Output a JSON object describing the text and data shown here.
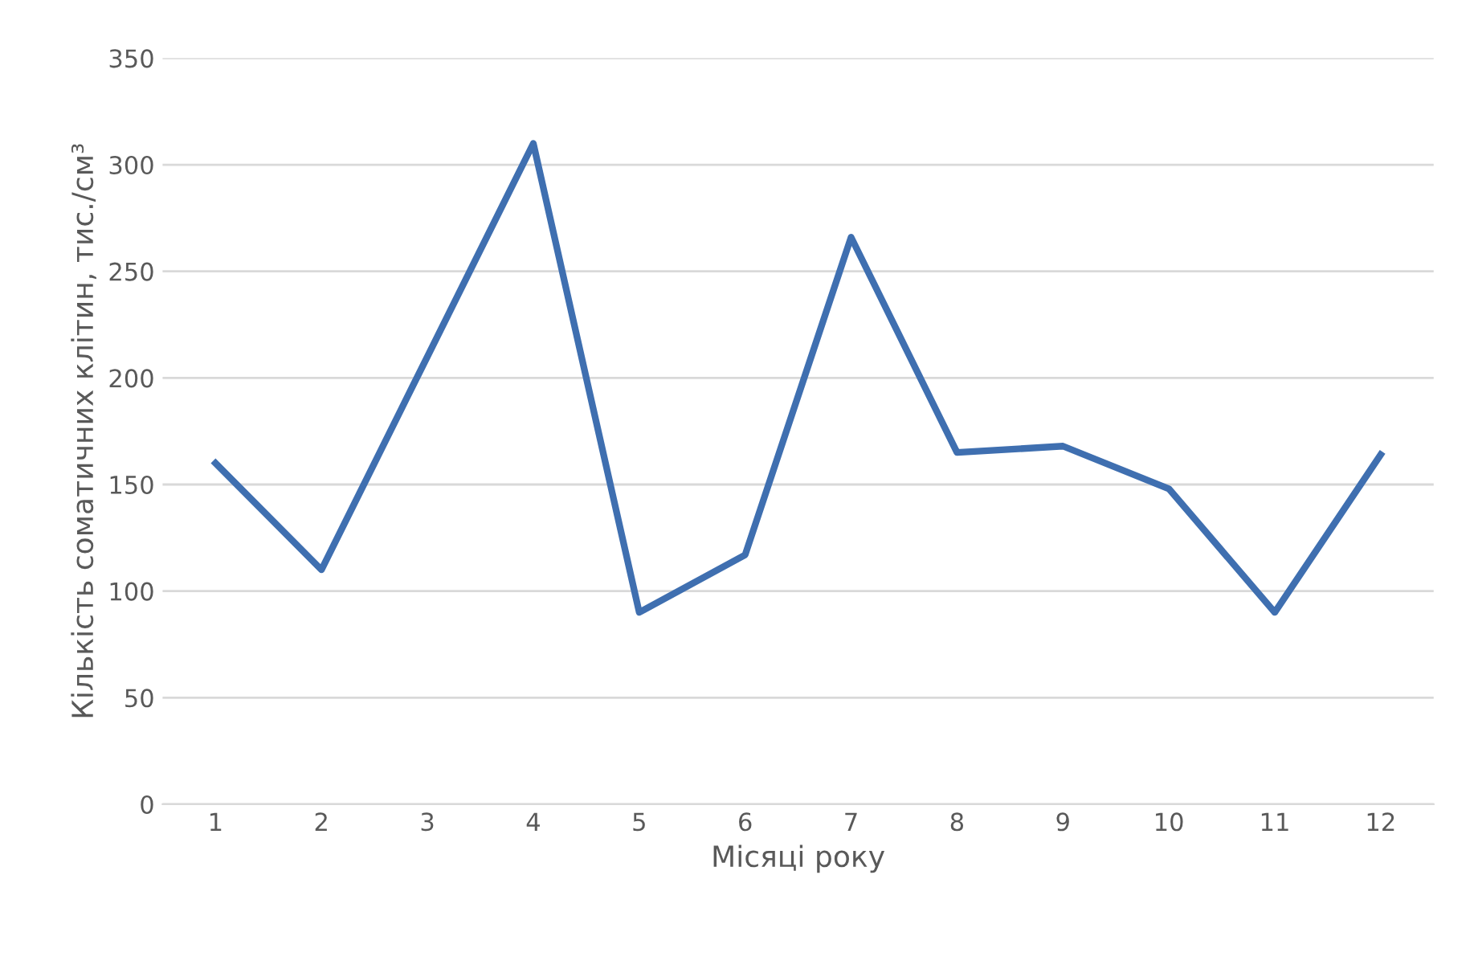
{
  "chart_data": {
    "type": "line",
    "xlabel": "Місяці року",
    "ylabel": "Кількість соматичних клітин, тис./см³",
    "categories": [
      "1",
      "2",
      "3",
      "4",
      "5",
      "6",
      "7",
      "8",
      "9",
      "10",
      "11",
      "12"
    ],
    "series": [
      {
        "color": "#3f6fb0",
        "values": [
          160,
          110,
          210,
          310,
          90,
          117,
          266,
          165,
          168,
          148,
          90,
          164
        ]
      }
    ],
    "ylim": [
      0,
      350
    ],
    "yticks": [
      0,
      50,
      100,
      150,
      200,
      250,
      300,
      350
    ],
    "grid": "y",
    "legend": false,
    "marker": "none",
    "line_style": "solid"
  }
}
